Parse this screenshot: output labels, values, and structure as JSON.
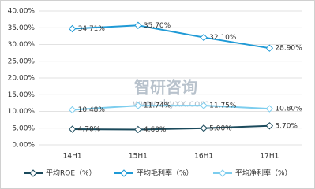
{
  "chart_data": {
    "type": "line",
    "categories": [
      "14H1",
      "15H1",
      "16H1",
      "17H1"
    ],
    "series": [
      {
        "name": "平均ROE（%）",
        "color": "#1b4a5c",
        "values": [
          4.7,
          4.6,
          5.0,
          5.7
        ],
        "value_labels": [
          "4.70%",
          "4.60%",
          "5.00%",
          "5.70%"
        ]
      },
      {
        "name": "平均毛利率（%）",
        "color": "#1f9ad6",
        "values": [
          34.71,
          35.7,
          32.1,
          28.9
        ],
        "value_labels": [
          "34.71%",
          "35.70%",
          "32.10%",
          "28.90%"
        ]
      },
      {
        "name": "平均净利率（%）",
        "color": "#7ccdee",
        "values": [
          10.48,
          11.74,
          11.75,
          10.8
        ],
        "value_labels": [
          "10.48%",
          "11.74%",
          "11.75%",
          "10.80%"
        ]
      }
    ],
    "ylim": [
      0,
      40
    ],
    "yticks": [
      {
        "value": 0,
        "label": "0.00%"
      },
      {
        "value": 5,
        "label": "5.00%"
      },
      {
        "value": 10,
        "label": "10.00%"
      },
      {
        "value": 15,
        "label": "15.00%"
      },
      {
        "value": 20,
        "label": "20.00%"
      },
      {
        "value": 25,
        "label": "25.00%"
      },
      {
        "value": 30,
        "label": "30.00%"
      },
      {
        "value": 35,
        "label": "35.00%"
      },
      {
        "value": 40,
        "label": "40.00%"
      }
    ],
    "grid": true,
    "legend": "bottom",
    "watermark": {
      "brand": "智研咨询",
      "url": "www.chyxx.com"
    }
  }
}
